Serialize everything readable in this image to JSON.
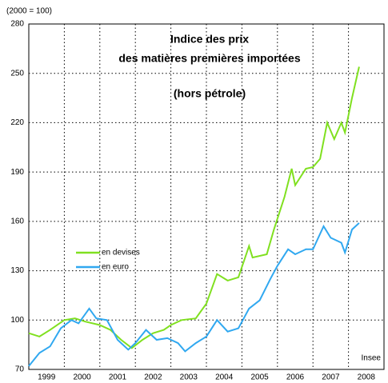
{
  "chart_data": {
    "type": "line",
    "title": [
      "Indice des prix",
      "des matières premières importées",
      "(hors pétrole)"
    ],
    "unit_label": "(2000 = 100)",
    "source": "Insee",
    "xlim": [
      1999,
      2009
    ],
    "xticks": [
      1999,
      2000,
      2001,
      2002,
      2003,
      2004,
      2005,
      2006,
      2007,
      2008
    ],
    "ylim": [
      70,
      280
    ],
    "yticks": [
      70,
      100,
      130,
      160,
      190,
      220,
      250,
      280
    ],
    "grid": true,
    "legend": "left",
    "series": [
      {
        "name": "en devises",
        "color": "#80e020",
        "x": [
          1999.0,
          1999.3,
          1999.6,
          2000.0,
          2000.3,
          2000.6,
          2001.0,
          2001.3,
          2001.6,
          2001.9,
          2002.2,
          2002.5,
          2002.8,
          2003.0,
          2003.3,
          2003.7,
          2004.0,
          2004.3,
          2004.6,
          2004.9,
          2005.2,
          2005.3,
          2005.7,
          2005.9,
          2006.2,
          2006.4,
          2006.5,
          2006.8,
          2007.0,
          2007.2,
          2007.4,
          2007.6,
          2007.8,
          2007.9,
          2008.1,
          2008.3
        ],
        "values": [
          92,
          90,
          94,
          100,
          101,
          99,
          97,
          94,
          88,
          83,
          88,
          92,
          94,
          97,
          100,
          101,
          110,
          128,
          124,
          126,
          145,
          138,
          140,
          155,
          175,
          192,
          182,
          192,
          193,
          198,
          220,
          210,
          220,
          214,
          235,
          254
        ]
      },
      {
        "name": "en euro",
        "color": "#30a8f0",
        "x": [
          1999.0,
          1999.3,
          1999.6,
          1999.9,
          2000.2,
          2000.4,
          2000.7,
          2000.9,
          2001.2,
          2001.5,
          2001.8,
          2002.0,
          2002.3,
          2002.6,
          2002.9,
          2003.2,
          2003.4,
          2003.7,
          2004.0,
          2004.3,
          2004.6,
          2004.9,
          2005.2,
          2005.5,
          2005.8,
          2006.0,
          2006.3,
          2006.5,
          2006.8,
          2007.0,
          2007.3,
          2007.5,
          2007.8,
          2007.9,
          2008.1,
          2008.3
        ],
        "values": [
          72,
          80,
          84,
          95,
          100,
          98,
          107,
          101,
          100,
          88,
          82,
          86,
          94,
          88,
          89,
          86,
          81,
          86,
          90,
          100,
          93,
          95,
          107,
          112,
          125,
          133,
          143,
          140,
          143,
          143,
          157,
          150,
          147,
          141,
          155,
          159
        ]
      }
    ]
  }
}
